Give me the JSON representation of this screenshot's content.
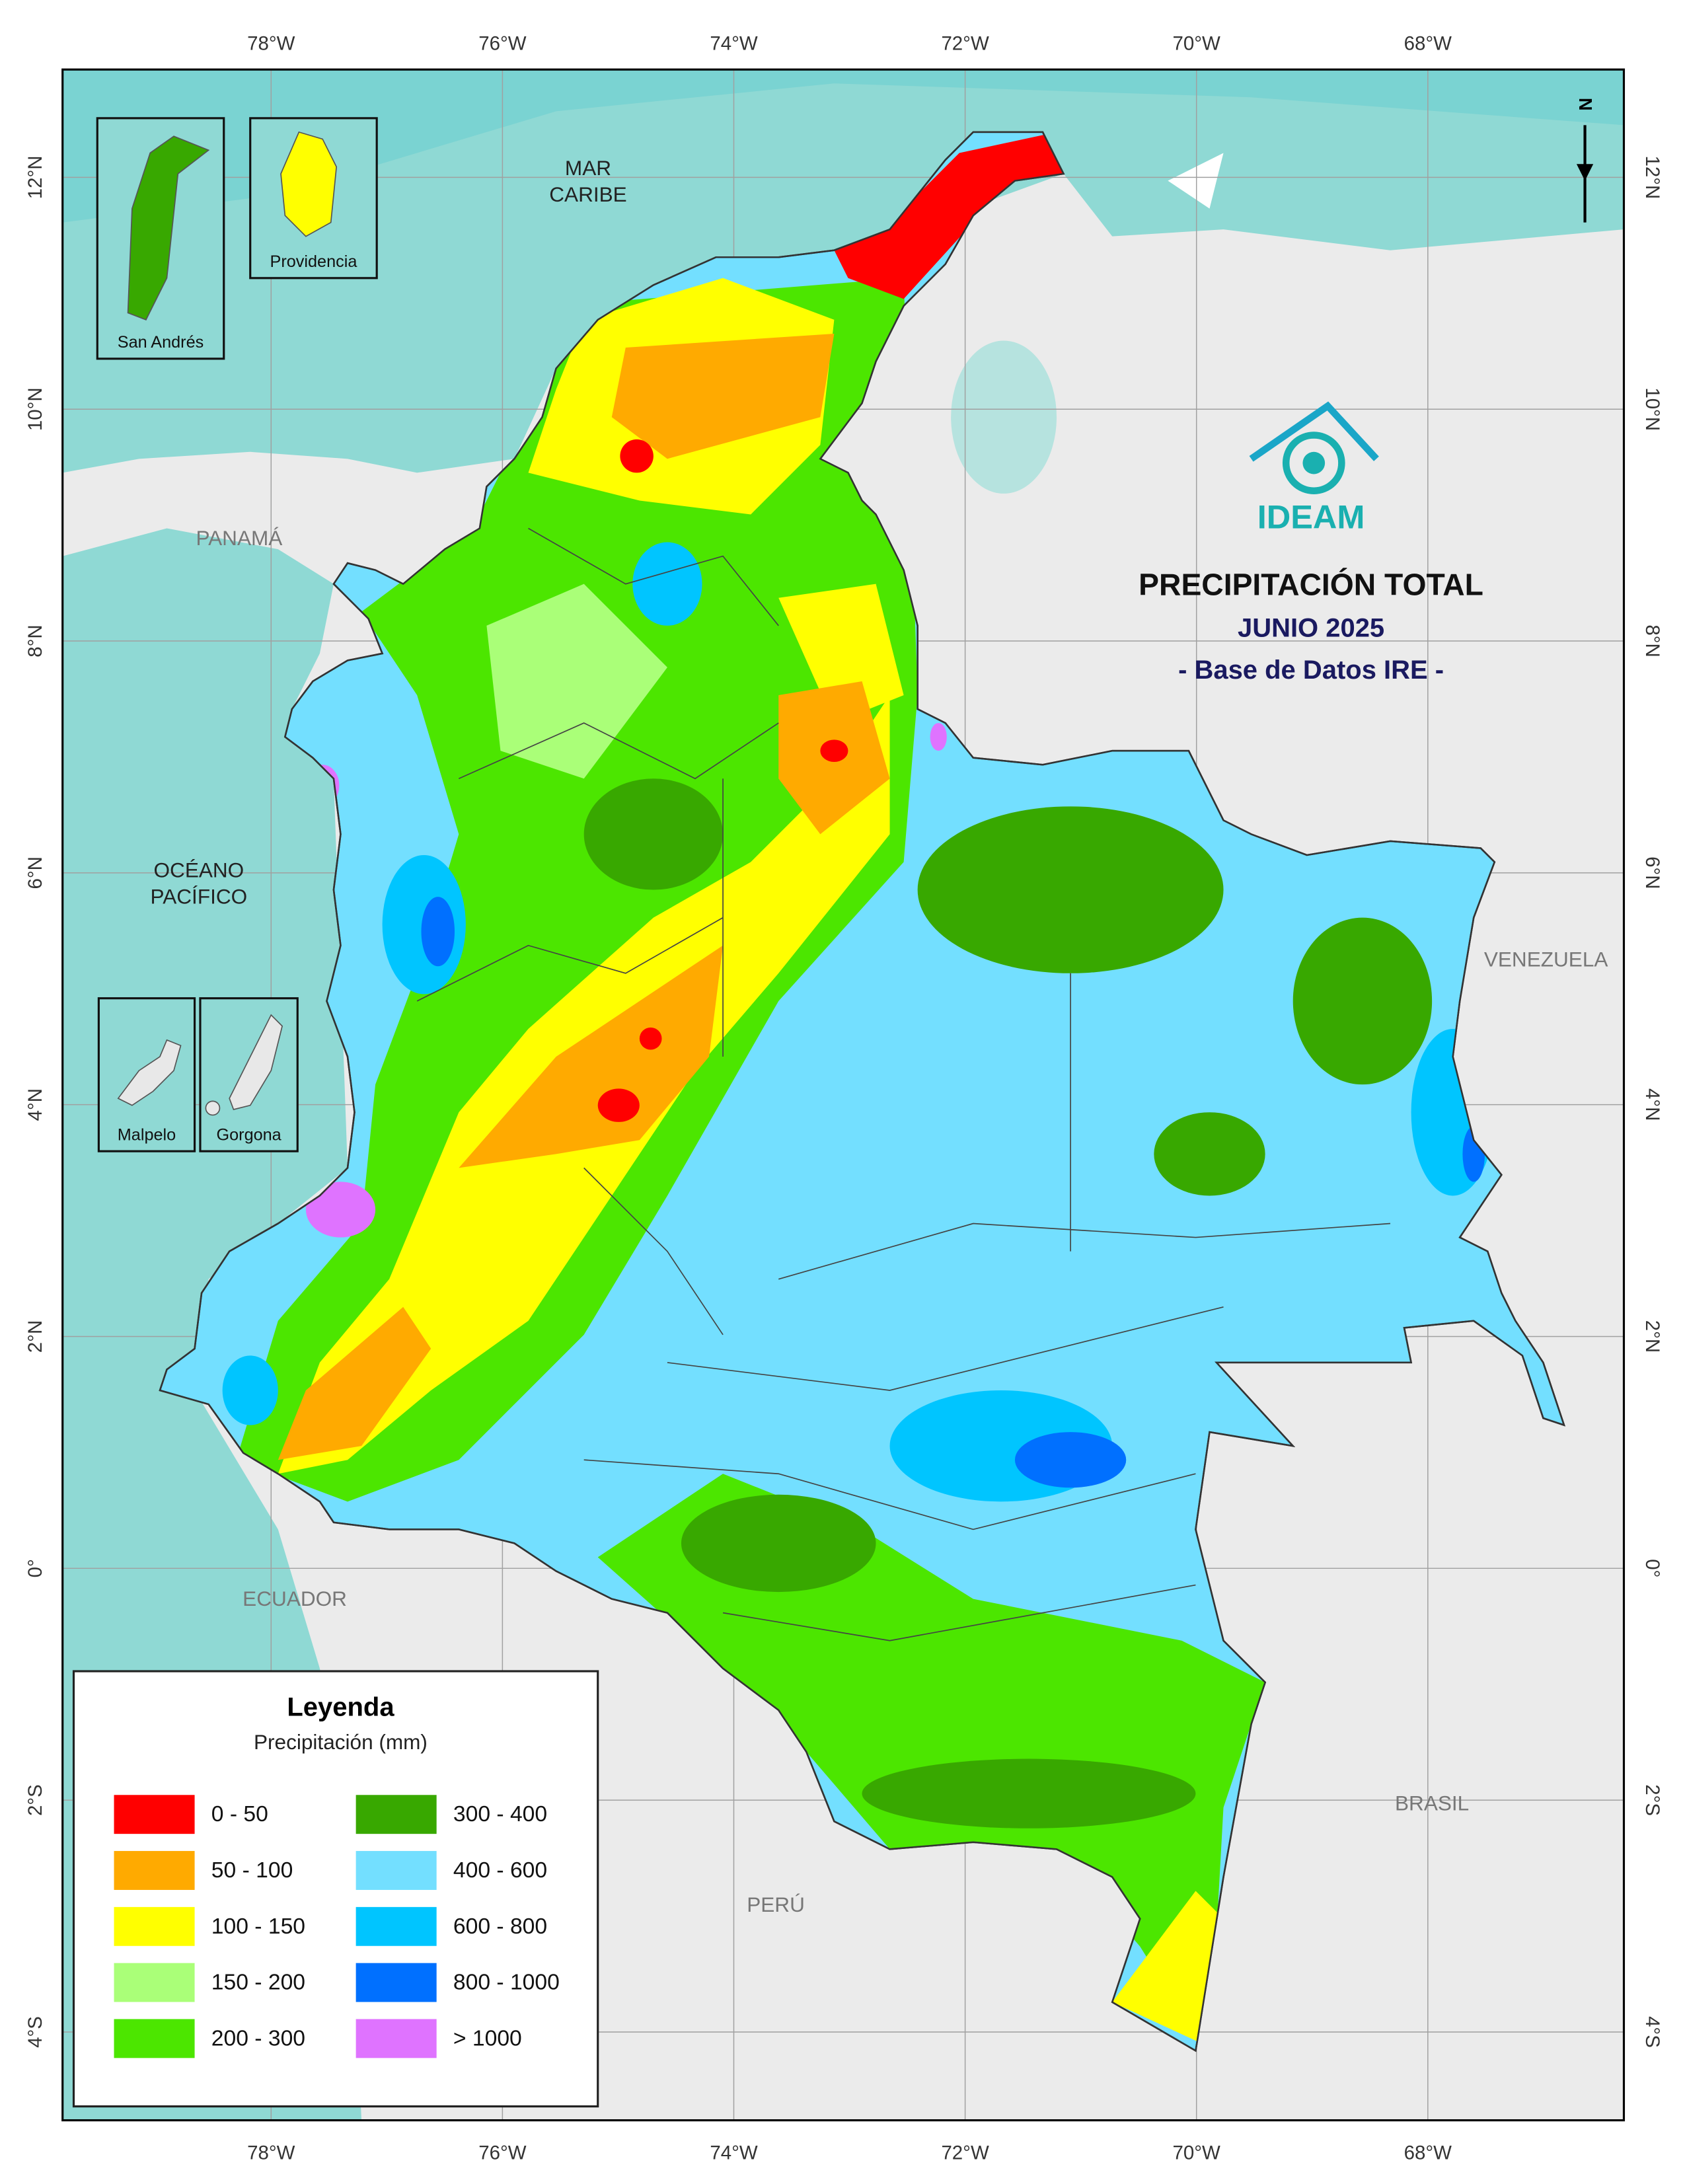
{
  "header": {
    "title": "PRECIPITACIÓN TOTAL",
    "subtitle": "JUNIO 2025",
    "source": "- Base de Datos IRE -",
    "logo": "IDEAM"
  },
  "map": {
    "lon_ticks": [
      {
        "value": -78,
        "label": "78°W"
      },
      {
        "value": -76,
        "label": "76°W"
      },
      {
        "value": -74,
        "label": "74°W"
      },
      {
        "value": -72,
        "label": "72°W"
      },
      {
        "value": -70,
        "label": "70°W"
      },
      {
        "value": -68,
        "label": "68°W"
      }
    ],
    "lat_ticks": [
      {
        "value": 12,
        "label": "12°N"
      },
      {
        "value": 10,
        "label": "10°N"
      },
      {
        "value": 8,
        "label": "8°N"
      },
      {
        "value": 6,
        "label": "6°N"
      },
      {
        "value": 4,
        "label": "4°N"
      },
      {
        "value": 2,
        "label": "2°N"
      },
      {
        "value": 0,
        "label": "0°"
      },
      {
        "value": -2,
        "label": "2°S"
      },
      {
        "value": -4,
        "label": "4°S"
      }
    ],
    "north": "N",
    "places": [
      {
        "lines": [
          "MAR",
          "CARIBE"
        ]
      },
      {
        "lines": [
          "PANAMÁ"
        ]
      },
      {
        "lines": [
          "OCÉANO",
          "PACÍFICO"
        ]
      },
      {
        "lines": [
          "VENEZUELA"
        ]
      },
      {
        "lines": [
          "ECUADOR"
        ]
      },
      {
        "lines": [
          "BRASIL"
        ]
      },
      {
        "lines": [
          "PERÚ"
        ]
      }
    ]
  },
  "insets": [
    {
      "label": "San Andrés"
    },
    {
      "label": "Providencia"
    },
    {
      "label": "Malpelo"
    },
    {
      "label": "Gorgona"
    }
  ],
  "legend": {
    "title": "Leyenda",
    "subtitle": "Precipitación (mm)",
    "classes": [
      {
        "label": "0 - 50",
        "color": "#ff0000"
      },
      {
        "label": "50 - 100",
        "color": "#ffaa00"
      },
      {
        "label": "100 - 150",
        "color": "#ffff00"
      },
      {
        "label": "150 - 200",
        "color": "#aaff78"
      },
      {
        "label": "200 - 300",
        "color": "#4ce600"
      },
      {
        "label": "300 - 400",
        "color": "#38a800"
      },
      {
        "label": "400 - 600",
        "color": "#73dfff"
      },
      {
        "label": "600 - 800",
        "color": "#00c5ff"
      },
      {
        "label": "800 - 1000",
        "color": "#0070ff"
      },
      {
        "label": "> 1000",
        "color": "#df73ff"
      }
    ]
  }
}
